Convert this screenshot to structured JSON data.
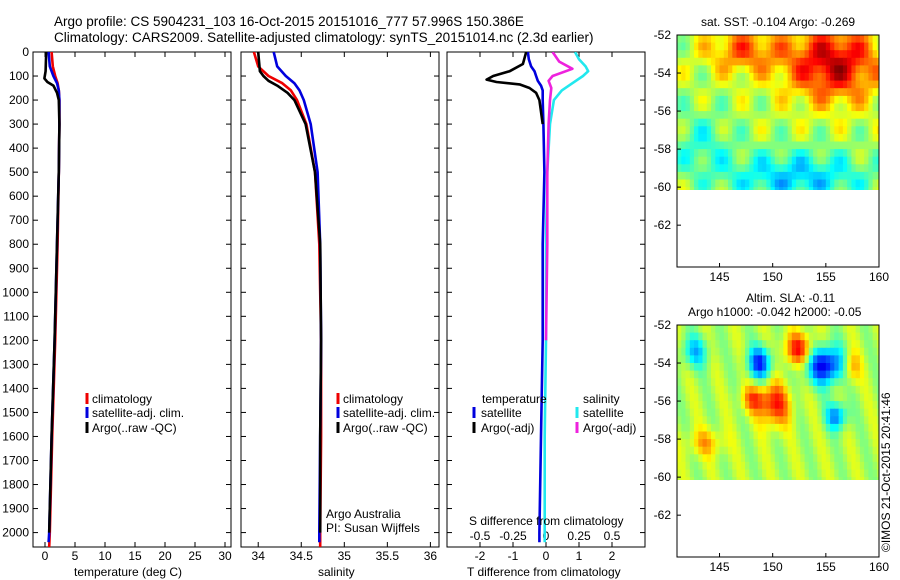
{
  "title": {
    "line1": "Argo profile: CS 5904231_103 16-Oct-2015 20151016_777 57.996S 150.386E",
    "line2": "Climatology: CARS2009. Satellite-adjusted climatology: synTS_20151014.nc (2.3d earlier)"
  },
  "footer": {
    "credit": "©IMOS 21-Oct-2015 20:41:46",
    "argo_line1": "Argo Australia",
    "argo_line2": "PI: Susan Wijffels"
  },
  "colors": {
    "climatology": "#ee0000",
    "satellite": "#0000dd",
    "argo": "#000000",
    "salinity_satellite": "#22e8ee",
    "salinity_argo": "#ee22dd"
  },
  "chart_data": [
    {
      "type": "line",
      "panel": "temperature",
      "xlabel": "temperature (deg C)",
      "xlim": [
        -2,
        31
      ],
      "ylim": [
        2060,
        0
      ],
      "xticks": [
        0,
        5,
        10,
        15,
        20,
        25,
        30
      ],
      "yticks": [
        0,
        100,
        200,
        300,
        400,
        500,
        600,
        700,
        800,
        900,
        1000,
        1100,
        1200,
        1300,
        1400,
        1500,
        1600,
        1700,
        1800,
        1900,
        2000
      ],
      "legend": [
        "climatology",
        "satellite-adj. clim.",
        "Argo(..raw -QC)"
      ],
      "series": [
        {
          "name": "climatology",
          "color": "#ee0000",
          "depth": [
            0,
            60,
            100,
            130,
            160,
            200,
            300,
            500,
            800,
            1200,
            1600,
            2000,
            2060
          ],
          "values": [
            1.1,
            1.3,
            1.7,
            2.1,
            2.3,
            2.4,
            2.4,
            2.3,
            2.1,
            1.7,
            1.2,
            0.8,
            0.7
          ]
        },
        {
          "name": "satellite-adj. clim.",
          "color": "#0000dd",
          "depth": [
            0,
            60,
            100,
            130,
            160,
            200,
            300,
            500,
            800,
            1200,
            1600,
            2000,
            2040
          ],
          "values": [
            0.6,
            0.8,
            1.4,
            2.0,
            2.3,
            2.4,
            2.4,
            2.3,
            2.0,
            1.6,
            1.1,
            0.7,
            0.6
          ]
        },
        {
          "name": "Argo(..raw -QC)",
          "color": "#000000",
          "depth": [
            0,
            80,
            110,
            125,
            140,
            170,
            200,
            300,
            500,
            800,
            1200,
            1600,
            2000
          ],
          "values": [
            0.2,
            0.1,
            -0.1,
            0.4,
            1.4,
            2.0,
            2.3,
            2.4,
            2.3,
            2.0,
            1.6,
            1.1,
            0.7
          ]
        }
      ]
    },
    {
      "type": "line",
      "panel": "salinity",
      "xlabel": "salinity",
      "xlim": [
        33.8,
        36.1
      ],
      "ylim": [
        2060,
        0
      ],
      "xticks": [
        34,
        34.5,
        35,
        35.5,
        36
      ],
      "xticklabels": [
        "34",
        "34.5",
        "35",
        "35.5",
        "36"
      ],
      "legend": [
        "climatology",
        "satellite-adj. clim.",
        "Argo(..raw -QC)"
      ],
      "series": [
        {
          "name": "climatology",
          "color": "#ee0000",
          "depth": [
            0,
            60,
            100,
            130,
            160,
            200,
            300,
            500,
            800,
            1200,
            1600,
            2000,
            2060
          ],
          "values": [
            33.95,
            34.0,
            34.12,
            34.28,
            34.38,
            34.45,
            34.56,
            34.66,
            34.71,
            34.73,
            34.73,
            34.72,
            34.72
          ]
        },
        {
          "name": "satellite-adj. clim.",
          "color": "#0000dd",
          "depth": [
            0,
            60,
            100,
            130,
            160,
            200,
            300,
            500,
            800,
            1200,
            1600,
            2000,
            2040
          ],
          "values": [
            34.18,
            34.22,
            34.32,
            34.42,
            34.48,
            34.53,
            34.61,
            34.69,
            34.72,
            34.73,
            34.72,
            34.71,
            34.71
          ]
        },
        {
          "name": "Argo(..raw -QC)",
          "color": "#000000",
          "depth": [
            0,
            80,
            100,
            120,
            140,
            170,
            200,
            300,
            500,
            800,
            1200,
            1600,
            2000
          ],
          "values": [
            34.0,
            34.02,
            34.06,
            34.12,
            34.22,
            34.34,
            34.42,
            34.55,
            34.66,
            34.72,
            34.73,
            34.72,
            34.72
          ]
        }
      ]
    },
    {
      "type": "line",
      "panel": "difference",
      "xlabel": "T difference from climatology",
      "top_axis_label": "S difference from climatology",
      "xlim": [
        -3,
        3
      ],
      "s_xlim": [
        -0.75,
        0.75
      ],
      "ylim": [
        2060,
        0
      ],
      "xticks": [
        -2,
        -1,
        0,
        1,
        2
      ],
      "top_xticks": [
        -0.5,
        -0.25,
        0,
        0.25,
        0.5
      ],
      "top_xticklabels": [
        "-0.5",
        "-0.25",
        "0",
        "0.25",
        "0.5"
      ],
      "legend_left_title": "temperature",
      "legend_right_title": "salinity",
      "legend_left": [
        "satellite",
        "Argo(-adj)"
      ],
      "legend_right": [
        "satellite",
        "Argo(-adj)"
      ],
      "series": [
        {
          "name": "T satellite",
          "color": "#0000dd",
          "depth": [
            0,
            30,
            60,
            80,
            100,
            120,
            140,
            160,
            200,
            300,
            500,
            800,
            1200,
            1600,
            2000,
            2040
          ],
          "values": [
            -0.55,
            -0.52,
            -0.45,
            -0.35,
            -0.3,
            -0.25,
            -0.15,
            -0.1,
            -0.1,
            -0.08,
            -0.05,
            -0.1,
            -0.1,
            -0.15,
            -0.2,
            -0.2
          ]
        },
        {
          "name": "T Argo(-adj)",
          "color": "#000000",
          "depth": [
            0,
            50,
            80,
            100,
            115,
            125,
            135,
            150,
            170,
            200,
            300
          ],
          "values": [
            -0.6,
            -0.7,
            -1.1,
            -1.6,
            -1.8,
            -1.5,
            -0.8,
            -0.5,
            -0.3,
            -0.2,
            -0.1
          ]
        },
        {
          "name": "S satellite",
          "color": "#22e8ee",
          "depth": [
            0,
            30,
            60,
            80,
            100,
            130,
            160,
            200,
            300,
            500,
            800,
            1200,
            1600,
            2000,
            2040
          ],
          "values": [
            0.22,
            0.25,
            0.3,
            0.32,
            0.28,
            0.2,
            0.12,
            0.06,
            0.03,
            0.01,
            0.0,
            0.0,
            -0.01,
            -0.01,
            -0.01
          ]
        },
        {
          "name": "S Argo(-adj)",
          "color": "#ee22dd",
          "depth": [
            0,
            40,
            70,
            100,
            120,
            150,
            200,
            300,
            500,
            800,
            1200
          ],
          "values": [
            0.05,
            0.1,
            0.2,
            0.05,
            0.02,
            0.04,
            0.03,
            0.02,
            0.01,
            0.01,
            0.0
          ]
        }
      ]
    },
    {
      "type": "heatmap",
      "panel": "sat-sst-map",
      "title": "sat. SST: -0.104 Argo: -0.269",
      "xlim": [
        141,
        160
      ],
      "ylim": [
        -64.2,
        -52
      ],
      "xticks": [
        145,
        150,
        155,
        160
      ],
      "yticks": [
        -52,
        -54,
        -56,
        -58,
        -60,
        -62
      ],
      "data_lat_min": -60
    },
    {
      "type": "heatmap",
      "panel": "altimetry-sla-map",
      "title_line1": "Altim. SLA: -0.11",
      "title_line2": "Argo h1000: -0.042 h2000: -0.05",
      "xlim": [
        141,
        160
      ],
      "ylim": [
        -64.2,
        -52
      ],
      "xticks": [
        145,
        150,
        155,
        160
      ],
      "yticks": [
        -52,
        -54,
        -56,
        -58,
        -60,
        -62
      ],
      "data_lat_min": -60
    }
  ]
}
